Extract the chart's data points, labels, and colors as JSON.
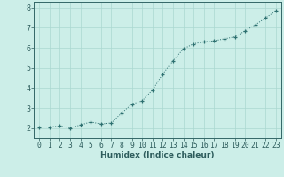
{
  "x": [
    0,
    1,
    2,
    3,
    4,
    5,
    6,
    7,
    8,
    9,
    10,
    11,
    12,
    13,
    14,
    15,
    16,
    17,
    18,
    19,
    20,
    21,
    22,
    23
  ],
  "y": [
    2.05,
    2.05,
    2.1,
    2.0,
    2.15,
    2.3,
    2.2,
    2.25,
    2.75,
    3.2,
    3.35,
    3.9,
    4.7,
    5.35,
    5.95,
    6.2,
    6.3,
    6.35,
    6.45,
    6.55,
    6.85,
    7.15,
    7.5,
    7.85
  ],
  "xlabel": "Humidex (Indice chaleur)",
  "xlim": [
    -0.5,
    23.5
  ],
  "ylim": [
    1.5,
    8.3
  ],
  "yticks": [
    2,
    3,
    4,
    5,
    6,
    7,
    8
  ],
  "xticks": [
    0,
    1,
    2,
    3,
    4,
    5,
    6,
    7,
    8,
    9,
    10,
    11,
    12,
    13,
    14,
    15,
    16,
    17,
    18,
    19,
    20,
    21,
    22,
    23
  ],
  "line_color": "#2d7070",
  "marker": "+",
  "bg_color": "#cceee8",
  "grid_color": "#aad8d0",
  "axis_color": "#336666",
  "label_color": "#2d5c5c",
  "xlabel_fontsize": 6.5,
  "tick_fontsize": 5.8,
  "linewidth": 0.7,
  "markersize": 3.5,
  "markeredgewidth": 0.9
}
